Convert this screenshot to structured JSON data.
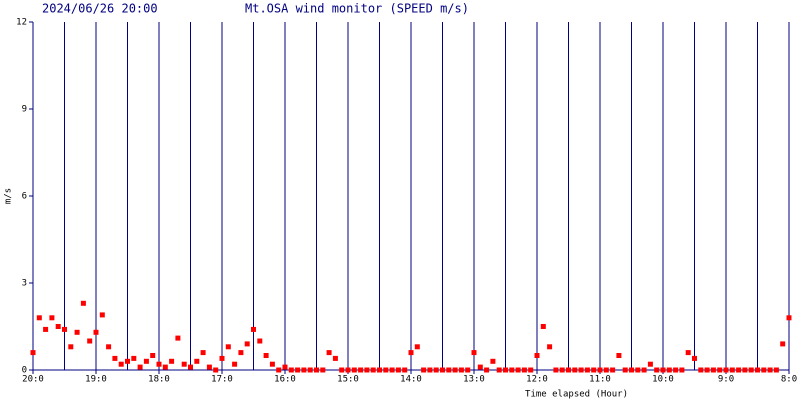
{
  "chart_data": {
    "type": "scatter",
    "title": "Mt.OSA wind monitor (SPEED m/s)",
    "subtitle": "2024/06/26 20:00",
    "x_label": "Time elapsed (Hour)",
    "y_label": "m/s",
    "color": "#ff0000",
    "grid_color": "#000080",
    "xlim": [
      0,
      12
    ],
    "ylim": [
      0,
      12
    ],
    "xticks": [
      {
        "value": 0,
        "label": "20:0"
      },
      {
        "value": 1,
        "label": "19:0"
      },
      {
        "value": 2,
        "label": "18:0"
      },
      {
        "value": 3,
        "label": "17:0"
      },
      {
        "value": 4,
        "label": "16:0"
      },
      {
        "value": 5,
        "label": "15:0"
      },
      {
        "value": 6,
        "label": "14:0"
      },
      {
        "value": 7,
        "label": "13:0"
      },
      {
        "value": 8,
        "label": "12:0"
      },
      {
        "value": 9,
        "label": "11:0"
      },
      {
        "value": 10,
        "label": "10:0"
      },
      {
        "value": 11,
        "label": "9:0"
      },
      {
        "value": 12,
        "label": "8:0"
      }
    ],
    "x_minor_grid": [
      0.5,
      1.5,
      2.5,
      3.5,
      4.5,
      5.5,
      6.5,
      7.5,
      8.5,
      9.5,
      10.5,
      11.5
    ],
    "yticks": [
      0,
      3,
      6,
      9,
      12
    ],
    "x": [
      0,
      0.1,
      0.2,
      0.3,
      0.4,
      0.5,
      0.6,
      0.7,
      0.8,
      0.9,
      1,
      1.1,
      1.2,
      1.3,
      1.4,
      1.5,
      1.6,
      1.7,
      1.8,
      1.9,
      2,
      2.1,
      2.2,
      2.3,
      2.4,
      2.5,
      2.6,
      2.7,
      2.8,
      2.9,
      3,
      3.1,
      3.2,
      3.3,
      3.4,
      3.5,
      3.6,
      3.7,
      3.8,
      3.9,
      4,
      4.1,
      4.2,
      4.3,
      4.4,
      4.5,
      4.6,
      4.7,
      4.8,
      4.9,
      5,
      5.1,
      5.2,
      5.3,
      5.4,
      5.5,
      5.6,
      5.7,
      5.8,
      5.9,
      6,
      6.1,
      6.2,
      6.3,
      6.4,
      6.5,
      6.6,
      6.7,
      6.8,
      6.9,
      7,
      7.1,
      7.2,
      7.3,
      7.4,
      7.5,
      7.6,
      7.7,
      7.8,
      7.9,
      8,
      8.1,
      8.2,
      8.3,
      8.4,
      8.5,
      8.6,
      8.7,
      8.8,
      8.9,
      9,
      9.1,
      9.2,
      9.3,
      9.4,
      9.5,
      9.6,
      9.7,
      9.8,
      9.9,
      10,
      10.1,
      10.2,
      10.3,
      10.4,
      10.5,
      10.6,
      10.7,
      10.8,
      10.9,
      11,
      11.1,
      11.2,
      11.3,
      11.4,
      11.5,
      11.6,
      11.7,
      11.8,
      11.9,
      12
    ],
    "values": [
      0.6,
      1.8,
      1.4,
      1.8,
      1.5,
      1.4,
      0.8,
      1.3,
      2.3,
      1.0,
      1.3,
      1.9,
      0.8,
      0.4,
      0.2,
      0.3,
      0.4,
      0.1,
      0.3,
      0.5,
      0.2,
      0.1,
      0.3,
      1.1,
      0.2,
      0.1,
      0.3,
      0.6,
      0.1,
      0,
      0.4,
      0.8,
      0.2,
      0.6,
      0.9,
      1.4,
      1.0,
      0.5,
      0.2,
      0,
      0.1,
      0,
      0,
      0,
      0,
      0,
      0,
      0.6,
      0.4,
      0,
      0,
      0,
      0,
      0,
      0,
      0,
      0,
      0,
      0,
      0,
      0.6,
      0.8,
      0,
      0,
      0,
      0,
      0,
      0,
      0,
      0,
      0.6,
      0.1,
      0,
      0.3,
      0,
      0,
      0,
      0,
      0,
      0,
      0.5,
      1.5,
      0.8,
      0,
      0,
      0,
      0,
      0,
      0,
      0,
      0,
      0,
      0,
      0.5,
      0,
      0,
      0,
      0,
      0.2,
      0,
      0,
      0,
      0,
      0,
      0.6,
      0.4,
      0,
      0,
      0,
      0,
      0,
      0,
      0,
      0,
      0,
      0,
      0,
      0,
      0,
      0.9,
      1.8
    ]
  }
}
